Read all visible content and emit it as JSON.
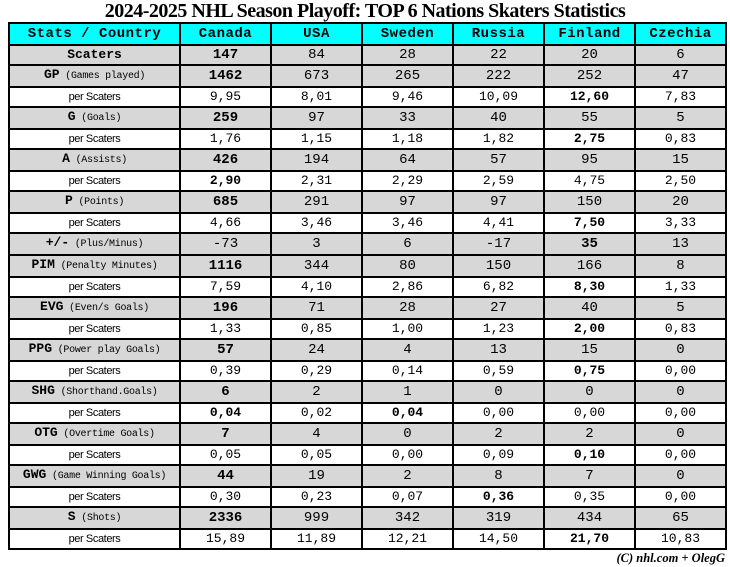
{
  "title": "2024-2025 NHL Season Playoff: TOP 6 Nations Skaters Statistics",
  "credit": "(C) nhl.com + OlegG",
  "colors": {
    "header_bg": "#00ffff",
    "stat_row_bg": "#d7d7d7",
    "per_row_bg": "#ffffff",
    "border": "#000000",
    "text": "#000000"
  },
  "chart_data": {
    "type": "table",
    "title": "2024-2025 NHL Season Playoff: TOP 6 Nations Skaters Statistics",
    "corner_label": "Stats / Country",
    "columns": [
      "Canada",
      "USA",
      "Sweden",
      "Russia",
      "Finland",
      "Czechia"
    ],
    "per_row_label": "per Scaters",
    "rows": [
      {
        "kind": "stat",
        "abbr": "Scaters",
        "desc": "",
        "values": [
          "147",
          "84",
          "28",
          "22",
          "20",
          "6"
        ],
        "bold": [
          0
        ]
      },
      {
        "kind": "stat",
        "abbr": "GP",
        "desc": "(Games played)",
        "values": [
          "1462",
          "673",
          "265",
          "222",
          "252",
          "47"
        ],
        "bold": [
          0
        ]
      },
      {
        "kind": "per",
        "values": [
          "9,95",
          "8,01",
          "9,46",
          "10,09",
          "12,60",
          "7,83"
        ],
        "bold": [
          4
        ]
      },
      {
        "kind": "stat",
        "abbr": "G",
        "desc": "(Goals)",
        "values": [
          "259",
          "97",
          "33",
          "40",
          "55",
          "5"
        ],
        "bold": [
          0
        ]
      },
      {
        "kind": "per",
        "values": [
          "1,76",
          "1,15",
          "1,18",
          "1,82",
          "2,75",
          "0,83"
        ],
        "bold": [
          4
        ]
      },
      {
        "kind": "stat",
        "abbr": "A",
        "desc": "(Assists)",
        "values": [
          "426",
          "194",
          "64",
          "57",
          "95",
          "15"
        ],
        "bold": [
          0
        ]
      },
      {
        "kind": "per",
        "values": [
          "2,90",
          "2,31",
          "2,29",
          "2,59",
          "4,75",
          "2,50"
        ],
        "bold": [
          0
        ]
      },
      {
        "kind": "stat",
        "abbr": "P",
        "desc": "(Points)",
        "values": [
          "685",
          "291",
          "97",
          "97",
          "150",
          "20"
        ],
        "bold": [
          0
        ]
      },
      {
        "kind": "per",
        "values": [
          "4,66",
          "3,46",
          "3,46",
          "4,41",
          "7,50",
          "3,33"
        ],
        "bold": [
          4
        ]
      },
      {
        "kind": "stat",
        "abbr": "+/-",
        "desc": "(Plus/Minus)",
        "values": [
          "-73",
          "3",
          "6",
          "-17",
          "35",
          "13"
        ],
        "bold": [
          4
        ]
      },
      {
        "kind": "stat",
        "abbr": "PIM",
        "desc": "(Penalty Minutes)",
        "values": [
          "1116",
          "344",
          "80",
          "150",
          "166",
          "8"
        ],
        "bold": [
          0
        ]
      },
      {
        "kind": "per",
        "values": [
          "7,59",
          "4,10",
          "2,86",
          "6,82",
          "8,30",
          "1,33"
        ],
        "bold": [
          4
        ]
      },
      {
        "kind": "stat",
        "abbr": "EVG",
        "desc": "(Even/s Goals)",
        "values": [
          "196",
          "71",
          "28",
          "27",
          "40",
          "5"
        ],
        "bold": [
          0
        ]
      },
      {
        "kind": "per",
        "values": [
          "1,33",
          "0,85",
          "1,00",
          "1,23",
          "2,00",
          "0,83"
        ],
        "bold": [
          4
        ]
      },
      {
        "kind": "stat",
        "abbr": "PPG",
        "desc": "(Power play Goals)",
        "values": [
          "57",
          "24",
          "4",
          "13",
          "15",
          "0"
        ],
        "bold": [
          0
        ]
      },
      {
        "kind": "per",
        "values": [
          "0,39",
          "0,29",
          "0,14",
          "0,59",
          "0,75",
          "0,00"
        ],
        "bold": [
          4
        ]
      },
      {
        "kind": "stat",
        "abbr": "SHG",
        "desc": "(Shorthand.Goals)",
        "values": [
          "6",
          "2",
          "1",
          "0",
          "0",
          "0"
        ],
        "bold": [
          0
        ]
      },
      {
        "kind": "per",
        "values": [
          "0,04",
          "0,02",
          "0,04",
          "0,00",
          "0,00",
          "0,00"
        ],
        "bold": [
          0,
          2
        ]
      },
      {
        "kind": "stat",
        "abbr": "OTG",
        "desc": "(Overtime Goals)",
        "values": [
          "7",
          "4",
          "0",
          "2",
          "2",
          "0"
        ],
        "bold": [
          0
        ]
      },
      {
        "kind": "per",
        "values": [
          "0,05",
          "0,05",
          "0,00",
          "0,09",
          "0,10",
          "0,00"
        ],
        "bold": [
          4
        ]
      },
      {
        "kind": "stat",
        "abbr": "GWG",
        "desc": "(Game Winning Goals)",
        "values": [
          "44",
          "19",
          "2",
          "8",
          "7",
          "0"
        ],
        "bold": [
          0
        ]
      },
      {
        "kind": "per",
        "values": [
          "0,30",
          "0,23",
          "0,07",
          "0,36",
          "0,35",
          "0,00"
        ],
        "bold": [
          3
        ]
      },
      {
        "kind": "stat",
        "abbr": "S",
        "desc": "(Shots)",
        "values": [
          "2336",
          "999",
          "342",
          "319",
          "434",
          "65"
        ],
        "bold": [
          0
        ]
      },
      {
        "kind": "per",
        "values": [
          "15,89",
          "11,89",
          "12,21",
          "14,50",
          "21,70",
          "10,83"
        ],
        "bold": [
          4
        ]
      }
    ]
  }
}
